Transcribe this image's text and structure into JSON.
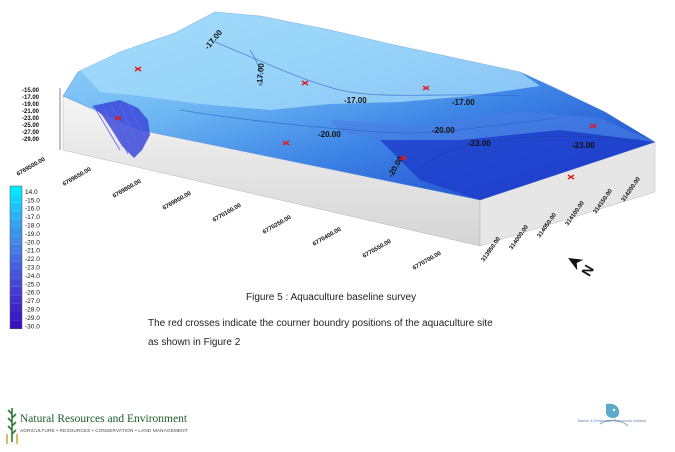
{
  "chart_data": {
    "type": "3d-surface-contour",
    "z_axis_ticks": [
      "-15.00",
      "-17.00",
      "-19.00",
      "-21.00",
      "-23.00",
      "-25.00",
      "-27.00",
      "-29.00"
    ],
    "y_axis_ticks": [
      "6769500.00",
      "6769650.00",
      "6769800.00",
      "6769950.00",
      "6770100.00",
      "6770250.00",
      "6770400.00",
      "6770550.00",
      "6770700.00"
    ],
    "x_axis_ticks": [
      "313950.00",
      "314000.00",
      "314050.00",
      "314100.00",
      "314150.00",
      "314200.00"
    ],
    "contour_labels": [
      "-17.00",
      "-17.00",
      "-17.00",
      "-17.00",
      "-20.00",
      "-20.00",
      "-20.00",
      "-20.00",
      "-23.00",
      "-23.00"
    ],
    "corner_markers": 8,
    "legend": {
      "values": [
        "14.0",
        "15.0",
        "16.0",
        "17.0",
        "18.0",
        "19.0",
        "20.0",
        "21.0",
        "22.0",
        "23.0",
        "24.0",
        "25.0",
        "26.0",
        "27.0",
        "28.0",
        "29.0",
        "30.0"
      ],
      "colors": [
        "#00e8ff",
        "#0fd6fb",
        "#1ec4f7",
        "#2cb2f2",
        "#37a3ee",
        "#3e96ea",
        "#4389e6",
        "#457ce3",
        "#466fdf",
        "#4662db",
        "#4656d7",
        "#4549d3",
        "#443dcf",
        "#4232cb",
        "#3f27c7",
        "#3b1dc4",
        "#3713c0"
      ]
    }
  },
  "captions": {
    "title": "Figure 5 : Aquaculture baseline survey",
    "line1": "The red crosses indicate the courner boundry positions of the aquaculture site",
    "line2": "as  shown in Figure 2"
  },
  "footer": {
    "org_name": "Natural Resources and Environment",
    "org_tagline": "AGRICULTURE • RESOURCES • CONSERVATION • LAND MANAGEMENT",
    "right_logo_text": "Marine & Freshwater Resources Institute"
  },
  "north_arrow": "N",
  "colors": {
    "surface_top": "#8fd0f8",
    "surface_deep": "#1535c8",
    "marker": "#e11b1b"
  }
}
